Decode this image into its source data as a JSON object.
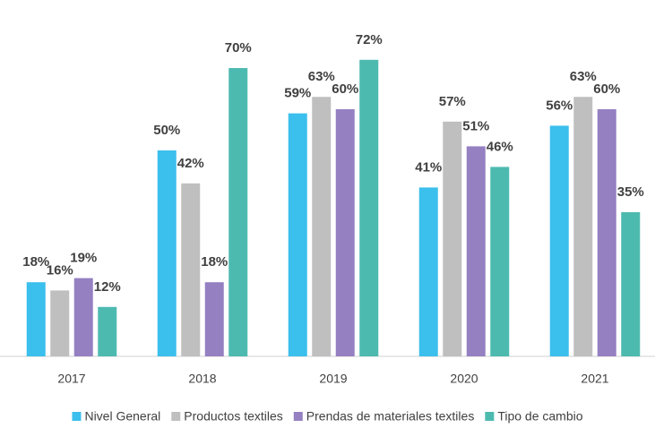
{
  "chart_data": {
    "type": "bar",
    "categories": [
      "2017",
      "2018",
      "2019",
      "2020",
      "2021"
    ],
    "series": [
      {
        "name": "Nivel General",
        "color": "#3bbfed",
        "values": [
          18,
          50,
          59,
          41,
          56
        ],
        "value_labels": [
          "18%",
          "50%",
          "59%",
          "41%",
          "56%"
        ]
      },
      {
        "name": "Productos textiles",
        "color": "#bfbfbf",
        "values": [
          16,
          42,
          63,
          57,
          63
        ],
        "value_labels": [
          "16%",
          "42%",
          "63%",
          "57%",
          "63%"
        ]
      },
      {
        "name": "Prendas de materiales textiles",
        "color": "#9580c2",
        "values": [
          19,
          18,
          60,
          51,
          60
        ],
        "value_labels": [
          "19%",
          "18%",
          "60%",
          "51%",
          "60%"
        ]
      },
      {
        "name": "Tipo de cambio",
        "color": "#4dbab0",
        "values": [
          12,
          70,
          72,
          46,
          35
        ],
        "value_labels": [
          "12%",
          "70%",
          "72%",
          "46%",
          "35%"
        ]
      }
    ],
    "ylim": [
      0,
      80
    ],
    "legend": "bottom"
  }
}
